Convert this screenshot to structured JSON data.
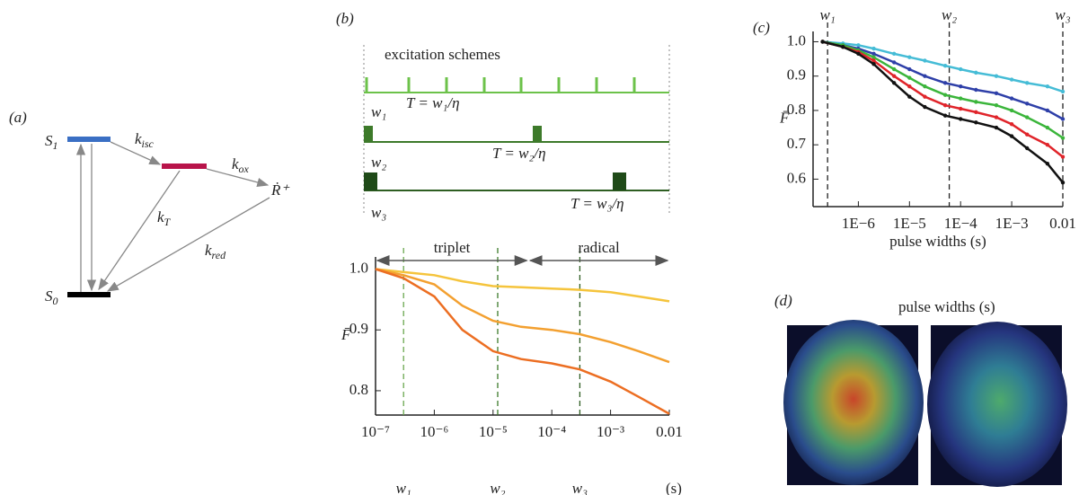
{
  "panel_a": {
    "label": "(a)",
    "s1": {
      "main": "S",
      "sub": "1"
    },
    "s0": {
      "main": "S",
      "sub": "0"
    },
    "k_isc": {
      "main": "k",
      "sub": "isc"
    },
    "k_ox": {
      "main": "k",
      "sub": "ox"
    },
    "k_t": {
      "main": "k",
      "sub": "T"
    },
    "k_red": {
      "main": "k",
      "sub": "red"
    },
    "radical": "Ṙ⁺"
  },
  "panel_b": {
    "label": "(b)",
    "schemes_title": "excitation schemes",
    "rows": [
      {
        "w": "w₁",
        "period": "T = w₁/η"
      },
      {
        "w": "w₂",
        "period": "T = w₂/η"
      },
      {
        "w": "w₃",
        "period": "T = w₃/η"
      }
    ]
  },
  "panel_d": {
    "label": "(d)",
    "title": "pulse widths (s)"
  },
  "panel_c": {
    "label": "(c)"
  },
  "chart_data": [
    {
      "type": "line",
      "ylabel": "F̄",
      "xlabel": "(s)",
      "log_x": true,
      "xlim": [
        1e-07,
        0.01
      ],
      "ylim": [
        0.76,
        1.02
      ],
      "xticks": [
        {
          "value": 1e-07,
          "label": "10⁻⁷"
        },
        {
          "value": 1e-06,
          "label": "10⁻⁶"
        },
        {
          "value": 1e-05,
          "label": "10⁻⁵"
        },
        {
          "value": 0.0001,
          "label": "10⁻⁴"
        },
        {
          "value": 0.001,
          "label": "10⁻³"
        },
        0.01
      ],
      "yticks": [
        0.8,
        0.9,
        {
          "value": 1,
          "label": "1.0"
        }
      ],
      "x": [
        1e-07,
        3e-07,
        1e-06,
        3e-06,
        1e-05,
        3e-05,
        0.0001,
        0.0003,
        0.001,
        0.003,
        0.01
      ],
      "series": [
        {
          "color": "#f5c43c",
          "values": [
            1.0,
            0.995,
            0.99,
            0.98,
            0.972,
            0.97,
            0.968,
            0.966,
            0.962,
            0.955,
            0.947
          ]
        },
        {
          "color": "#f3a030",
          "values": [
            1.0,
            0.99,
            0.975,
            0.94,
            0.915,
            0.905,
            0.9,
            0.893,
            0.88,
            0.865,
            0.847
          ]
        },
        {
          "color": "#ec6e22",
          "values": [
            1.0,
            0.985,
            0.955,
            0.9,
            0.865,
            0.852,
            0.845,
            0.835,
            0.815,
            0.79,
            0.762
          ]
        }
      ],
      "markers": [
        {
          "label": "w₁",
          "value": 3e-07,
          "color": "#6aa84f"
        },
        {
          "label": "w₂",
          "value": 1.2e-05,
          "color": "#3d7a2a"
        },
        {
          "label": "w₃",
          "value": 0.0003,
          "color": "#2e5e22"
        }
      ],
      "ranges": [
        {
          "label": "triplet",
          "from": 1e-07,
          "to": 4e-05
        },
        {
          "label": "radical",
          "from": 4e-05,
          "to": 0.01
        }
      ]
    },
    {
      "type": "line",
      "ylabel": "F̄",
      "xlabel": "pulse widths (s)",
      "log_x": true,
      "dots": true,
      "xlim": [
        1.3e-07,
        0.01
      ],
      "ylim": [
        0.52,
        1.03
      ],
      "xticks": [
        {
          "value": 1e-06,
          "label": "1E−6"
        },
        {
          "value": 1e-05,
          "label": "1E−5"
        },
        {
          "value": 0.0001,
          "label": "1E−4"
        },
        {
          "value": 0.001,
          "label": "1E−3"
        },
        0.01
      ],
      "yticks": [
        0.6,
        0.7,
        0.8,
        0.9,
        {
          "value": 1,
          "label": "1.0"
        }
      ],
      "x": [
        2e-07,
        5e-07,
        1e-06,
        2e-06,
        5e-06,
        1e-05,
        2e-05,
        5e-05,
        0.0001,
        0.0002,
        0.0005,
        0.001,
        0.002,
        0.005,
        0.01
      ],
      "series": [
        {
          "color": "#45bcd6",
          "values": [
            1.0,
            0.995,
            0.99,
            0.98,
            0.965,
            0.955,
            0.945,
            0.93,
            0.92,
            0.91,
            0.9,
            0.89,
            0.88,
            0.87,
            0.855
          ]
        },
        {
          "color": "#2e3fa8",
          "values": [
            1.0,
            0.99,
            0.98,
            0.965,
            0.94,
            0.92,
            0.9,
            0.88,
            0.87,
            0.86,
            0.85,
            0.835,
            0.82,
            0.8,
            0.775
          ]
        },
        {
          "color": "#3bb53b",
          "values": [
            1.0,
            0.99,
            0.975,
            0.955,
            0.92,
            0.895,
            0.87,
            0.845,
            0.835,
            0.825,
            0.815,
            0.8,
            0.78,
            0.75,
            0.72
          ]
        },
        {
          "color": "#e0242a",
          "values": [
            1.0,
            0.985,
            0.97,
            0.945,
            0.9,
            0.87,
            0.84,
            0.815,
            0.805,
            0.795,
            0.78,
            0.76,
            0.73,
            0.7,
            0.665
          ]
        },
        {
          "color": "#111111",
          "values": [
            1.0,
            0.985,
            0.965,
            0.935,
            0.88,
            0.84,
            0.81,
            0.785,
            0.775,
            0.765,
            0.75,
            0.725,
            0.69,
            0.645,
            0.59
          ]
        }
      ],
      "markers": [
        {
          "label": "w₁",
          "value": 2.5e-07,
          "color": "#222222"
        },
        {
          "label": "w₂",
          "value": 6e-05,
          "color": "#222222"
        },
        {
          "label": "w₃",
          "value": 0.01,
          "color": "#222222"
        }
      ]
    }
  ]
}
